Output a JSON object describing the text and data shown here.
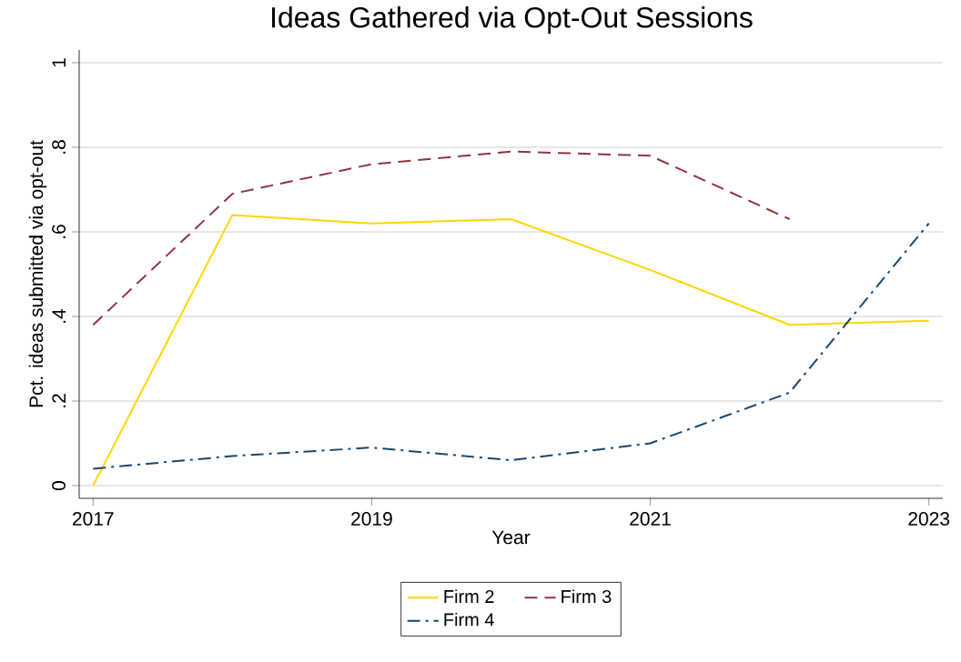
{
  "chart_data": {
    "type": "line",
    "title": "Ideas Gathered via Opt-Out Sessions",
    "xlabel": "Year",
    "ylabel": "Pct. ideas submitted via opt-out",
    "x": [
      2017,
      2018,
      2019,
      2020,
      2021,
      2022,
      2023
    ],
    "series": [
      {
        "name": "Firm 2",
        "color": "#ffd700",
        "line_style": "solid",
        "values": [
          0.0,
          0.64,
          0.62,
          0.63,
          0.51,
          0.38,
          0.39
        ]
      },
      {
        "name": "Firm 3",
        "color": "#90353b",
        "line_style": "dashed",
        "values": [
          0.38,
          0.69,
          0.76,
          0.79,
          0.78,
          0.63,
          null
        ]
      },
      {
        "name": "Firm 4",
        "color": "#1a476f",
        "line_style": "dashdot",
        "values": [
          0.04,
          0.07,
          0.09,
          0.06,
          0.1,
          0.22,
          0.62
        ]
      }
    ],
    "xlim": [
      2016.9,
      2023.1
    ],
    "xticks": [
      2017,
      2019,
      2021,
      2023
    ],
    "ylim": [
      -0.03,
      1.03
    ],
    "yticks": [
      0,
      {
        "value": 0.2,
        "label": ".2"
      },
      {
        "value": 0.4,
        "label": ".4"
      },
      {
        "value": 0.6,
        "label": ".6"
      },
      {
        "value": 0.8,
        "label": ".8"
      },
      1
    ],
    "grid": "y",
    "legend": "bottom"
  }
}
